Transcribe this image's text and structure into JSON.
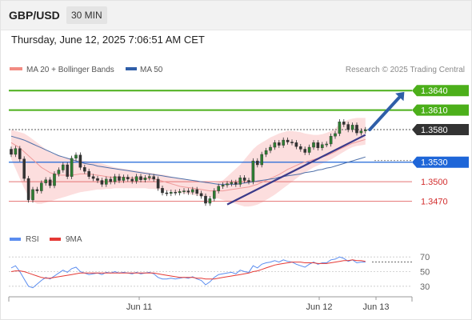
{
  "header": {
    "symbol": "GBP/USD",
    "timeframe": "30 MIN"
  },
  "datetime": "Thursday, June 12, 2025 7:06:51 AM CET",
  "legend": {
    "bands": "MA 20 + Bollinger Bands",
    "ma50": "MA 50"
  },
  "credit": "Research © 2025 Trading Central",
  "colors": {
    "resistance": "#4caf1a",
    "support": "#1e66d8",
    "level_red": "#e57373",
    "current": "#333333",
    "candle": "#2e7d32",
    "arrow": "#2f5ea8",
    "band": "#fbd3d3"
  },
  "levels": [
    {
      "label": "1.3640",
      "kind": "resistance",
      "value": 1.364
    },
    {
      "label": "1.3610",
      "kind": "resistance",
      "value": 1.361
    },
    {
      "label": "1.3580",
      "kind": "current",
      "value": 1.358
    },
    {
      "label": "1.3530",
      "kind": "support",
      "value": 1.353
    },
    {
      "label": "1.3500",
      "kind": "red",
      "value": 1.35
    },
    {
      "label": "1.3470",
      "kind": "red",
      "value": 1.347
    }
  ],
  "rsi_legend": {
    "rsi": "RSI",
    "ma": "9MA"
  },
  "rsi_ticks": [
    "70",
    "50",
    "30"
  ],
  "dates": [
    "Jun 11",
    "Jun 12",
    "Jun 13"
  ],
  "chart_data": {
    "type": "candlestick",
    "price_range": [
      1.344,
      1.3655
    ],
    "closes": [
      1.3542,
      1.3551,
      1.3535,
      1.3505,
      1.3472,
      1.3488,
      1.3486,
      1.3498,
      1.3503,
      1.3494,
      1.3512,
      1.3518,
      1.3526,
      1.3508,
      1.3536,
      1.3541,
      1.3522,
      1.3516,
      1.3508,
      1.3505,
      1.3502,
      1.3496,
      1.3504,
      1.35,
      1.3508,
      1.3502,
      1.3507,
      1.3504,
      1.3501,
      1.3508,
      1.3503,
      1.3506,
      1.3508,
      1.3504,
      1.349,
      1.3483,
      1.3482,
      1.3484,
      1.3483,
      1.3485,
      1.3486,
      1.3484,
      1.3488,
      1.3482,
      1.3478,
      1.3467,
      1.3474,
      1.3486,
      1.3493,
      1.3495,
      1.3497,
      1.3499,
      1.3496,
      1.3506,
      1.3502,
      1.35,
      1.3532,
      1.3526,
      1.3542,
      1.3548,
      1.3553,
      1.356,
      1.3556,
      1.3564,
      1.3561,
      1.356,
      1.3554,
      1.355,
      1.3545,
      1.3553,
      1.356,
      1.3552,
      1.3557,
      1.3558,
      1.357,
      1.3574,
      1.3592,
      1.3588,
      1.358,
      1.3587,
      1.3575,
      1.3578,
      1.358
    ],
    "ma20": [
      1.356,
      1.3556,
      1.3552,
      1.3546,
      1.354,
      1.3534,
      1.3528,
      1.3522,
      1.3518,
      1.3514,
      1.3512,
      1.351,
      1.351,
      1.351,
      1.351,
      1.3511,
      1.3512,
      1.3512,
      1.3512,
      1.3511,
      1.351,
      1.3509,
      1.3508,
      1.3507,
      1.3507,
      1.3507,
      1.3507,
      1.3506,
      1.3506,
      1.3505,
      1.3505,
      1.3505,
      1.3505,
      1.3504,
      1.3503,
      1.3501,
      1.3499,
      1.3497,
      1.3495,
      1.3493,
      1.3492,
      1.3491,
      1.349,
      1.3489,
      1.3488,
      1.3487,
      1.3486,
      1.3486,
      1.3486,
      1.3486,
      1.3487,
      1.3488,
      1.3489,
      1.349,
      1.3491,
      1.3492,
      1.3494,
      1.3496,
      1.3499,
      1.3502,
      1.3505,
      1.3508,
      1.3511,
      1.3515,
      1.3519,
      1.3522,
      1.3525,
      1.3528,
      1.353,
      1.3532,
      1.3534,
      1.3536,
      1.3538,
      1.354,
      1.3543,
      1.3546,
      1.355,
      1.3553,
      1.3556,
      1.3559,
      1.3561,
      1.3563,
      1.3565
    ],
    "bb_upper": [
      1.358,
      1.3578,
      1.3576,
      1.3574,
      1.357,
      1.3565,
      1.356,
      1.3555,
      1.355,
      1.3545,
      1.3542,
      1.354,
      1.3538,
      1.3536,
      1.3535,
      1.3534,
      1.3533,
      1.3532,
      1.3531,
      1.353,
      1.3529,
      1.3528,
      1.3526,
      1.3524,
      1.3522,
      1.3521,
      1.352,
      1.3519,
      1.3518,
      1.3517,
      1.3516,
      1.3515,
      1.3514,
      1.3513,
      1.3512,
      1.3511,
      1.351,
      1.3508,
      1.3506,
      1.3505,
      1.3504,
      1.3503,
      1.3502,
      1.3501,
      1.35,
      1.3499,
      1.3498,
      1.3498,
      1.3499,
      1.3502,
      1.3508,
      1.3514,
      1.352,
      1.3526,
      1.3534,
      1.3542,
      1.355,
      1.3556,
      1.356,
      1.3564,
      1.3568,
      1.3571,
      1.3574,
      1.3576,
      1.3578,
      1.3578,
      1.3577,
      1.3576,
      1.3574,
      1.3573,
      1.3572,
      1.3572,
      1.3573,
      1.3575,
      1.3578,
      1.3582,
      1.3588,
      1.3592,
      1.3595,
      1.3597,
      1.3598,
      1.3598,
      1.3598
    ],
    "bb_lower": [
      1.3535,
      1.352,
      1.3505,
      1.349,
      1.3478,
      1.347,
      1.3466,
      1.3466,
      1.3468,
      1.347,
      1.3472,
      1.3474,
      1.3476,
      1.3478,
      1.348,
      1.3482,
      1.3484,
      1.3485,
      1.3486,
      1.3487,
      1.3488,
      1.3488,
      1.3489,
      1.3489,
      1.349,
      1.349,
      1.349,
      1.349,
      1.349,
      1.349,
      1.349,
      1.349,
      1.3489,
      1.3489,
      1.3488,
      1.3487,
      1.3486,
      1.3485,
      1.3484,
      1.3483,
      1.3482,
      1.3481,
      1.348,
      1.3479,
      1.3478,
      1.3477,
      1.3476,
      1.3475,
      1.3474,
      1.3472,
      1.347,
      1.3468,
      1.3466,
      1.3464,
      1.3462,
      1.3462,
      1.3463,
      1.3465,
      1.3468,
      1.3472,
      1.3476,
      1.348,
      1.3485,
      1.349,
      1.3495,
      1.35,
      1.3505,
      1.351,
      1.3514,
      1.3518,
      1.3522,
      1.3525,
      1.3528,
      1.3531,
      1.3534,
      1.3538,
      1.3542,
      1.3546,
      1.355,
      1.3553,
      1.3555,
      1.3556,
      1.3557
    ],
    "ma50": [
      1.357,
      1.3568,
      1.3566,
      1.3564,
      1.3561,
      1.3558,
      1.3555,
      1.3552,
      1.3549,
      1.3546,
      1.3543,
      1.354,
      1.3538,
      1.3536,
      1.3534,
      1.3532,
      1.353,
      1.3528,
      1.3527,
      1.3526,
      1.3524,
      1.3523,
      1.3522,
      1.3521,
      1.352,
      1.3519,
      1.3518,
      1.3517,
      1.3516,
      1.3515,
      1.3514,
      1.3513,
      1.3512,
      1.3511,
      1.351,
      1.3509,
      1.3508,
      1.3507,
      1.3506,
      1.3505,
      1.3504,
      1.3503,
      1.3502,
      1.3501,
      1.35,
      1.3499,
      1.3498,
      1.3497,
      1.3496,
      1.3496,
      1.3496,
      1.3496,
      1.3496,
      1.3497,
      1.3498,
      1.3499,
      1.35,
      1.3501,
      1.3502,
      1.3503,
      1.3504,
      1.3505,
      1.3507,
      1.3508,
      1.3509,
      1.351,
      1.3511,
      1.3512,
      1.3514,
      1.3515,
      1.3516,
      1.3518,
      1.3519,
      1.3521,
      1.3522,
      1.3524,
      1.3526,
      1.3528,
      1.353,
      1.3532,
      1.3534,
      1.3536,
      1.3538
    ],
    "trendline": [
      [
        50,
        1.3465
      ],
      [
        82,
        1.3572
      ]
    ],
    "arrow": [
      [
        83,
        1.358
      ],
      [
        91,
        1.3638
      ]
    ],
    "rsi_range": [
      20,
      80
    ],
    "rsi": [
      55,
      58,
      50,
      40,
      30,
      28,
      33,
      38,
      42,
      40,
      44,
      48,
      52,
      49,
      54,
      56,
      50,
      48,
      46,
      47,
      48,
      46,
      49,
      48,
      50,
      48,
      49,
      48,
      47,
      49,
      47,
      48,
      49,
      47,
      42,
      40,
      40,
      41,
      40,
      41,
      42,
      41,
      43,
      40,
      38,
      32,
      36,
      42,
      46,
      47,
      48,
      49,
      47,
      52,
      50,
      49,
      58,
      55,
      60,
      62,
      63,
      65,
      63,
      66,
      64,
      63,
      60,
      58,
      56,
      60,
      63,
      60,
      62,
      62,
      66,
      67,
      70,
      68,
      64,
      66,
      62,
      63,
      63
    ],
    "rsi_ma": [
      50,
      51,
      51,
      50,
      48,
      46,
      44,
      42,
      41,
      41,
      42,
      43,
      44,
      45,
      46,
      47,
      48,
      48,
      48,
      48,
      48,
      48,
      48,
      48,
      48,
      48,
      48,
      48,
      48,
      48,
      48,
      48,
      48,
      48,
      47,
      46,
      45,
      44,
      43,
      42,
      42,
      42,
      42,
      41,
      41,
      40,
      40,
      40,
      41,
      42,
      43,
      44,
      45,
      46,
      47,
      48,
      50,
      51,
      53,
      55,
      57,
      59,
      60,
      61,
      62,
      63,
      63,
      63,
      62,
      62,
      62,
      61,
      61,
      61,
      62,
      63,
      64,
      65,
      65,
      66,
      65,
      65,
      64
    ]
  }
}
